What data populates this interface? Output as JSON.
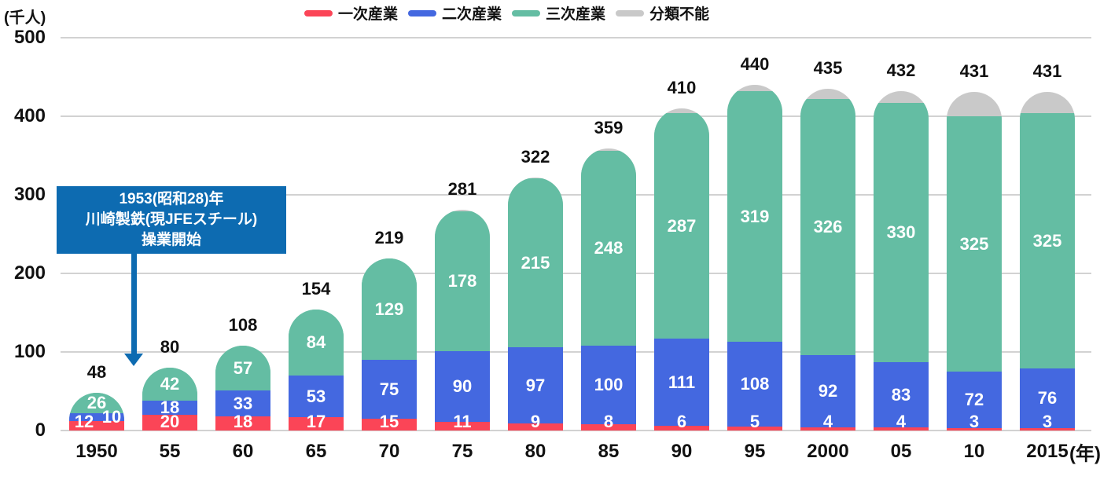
{
  "y_axis": {
    "unit_label": "(千人)",
    "ticks": [
      "500",
      "400",
      "300",
      "200",
      "100",
      "0"
    ]
  },
  "x_axis": {
    "suffix": "(年)"
  },
  "legend": {
    "items": [
      {
        "label": "一次産業",
        "color": "#fb4557"
      },
      {
        "label": "二次産業",
        "color": "#4468e0"
      },
      {
        "label": "三次産業",
        "color": "#64bda3"
      },
      {
        "label": "分類不能",
        "color": "#c9c9c9"
      }
    ]
  },
  "annotation": {
    "lines": [
      "1953(昭和28)年",
      "川崎製鉄(現JFEスチール)",
      "操業開始"
    ],
    "bg_color": "#0d6bb1"
  },
  "chart_data": {
    "type": "bar",
    "stacked": true,
    "title": "",
    "xlabel": "(年)",
    "ylabel": "(千人)",
    "ylim": [
      0,
      500
    ],
    "grid": true,
    "legend_position": "top",
    "categories": [
      "1950",
      "55",
      "60",
      "65",
      "70",
      "75",
      "80",
      "85",
      "90",
      "95",
      "2000",
      "05",
      "10",
      "2015"
    ],
    "series": [
      {
        "name": "一次産業",
        "color": "#fb4557",
        "values": [
          12,
          20,
          18,
          17,
          15,
          11,
          9,
          8,
          6,
          5,
          4,
          4,
          3,
          3
        ]
      },
      {
        "name": "二次産業",
        "color": "#4468e0",
        "values": [
          10,
          18,
          33,
          53,
          75,
          90,
          97,
          100,
          111,
          108,
          92,
          83,
          72,
          76
        ]
      },
      {
        "name": "三次産業",
        "color": "#64bda3",
        "values": [
          26,
          42,
          57,
          84,
          129,
          178,
          215,
          248,
          287,
          319,
          326,
          330,
          325,
          325
        ]
      },
      {
        "name": "分類不能",
        "color": "#c9c9c9",
        "values": [
          0,
          0,
          0,
          0,
          0,
          2,
          1,
          3,
          6,
          8,
          13,
          15,
          31,
          27
        ]
      }
    ],
    "totals": [
      48,
      80,
      108,
      154,
      219,
      281,
      322,
      359,
      410,
      440,
      435,
      432,
      431,
      431
    ]
  }
}
